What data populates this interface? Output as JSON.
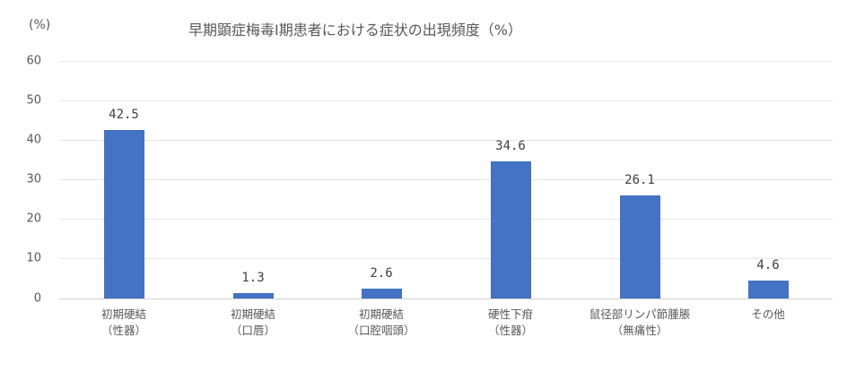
{
  "chart": {
    "unit_label": "(%)",
    "title": "早期顕症梅毒Ⅰ期患者における症状の出現頻度（%）",
    "y_ticks": [
      "0",
      "10",
      "20",
      "30",
      "40",
      "50",
      "60"
    ],
    "bars": [
      {
        "line1": "初期硬結",
        "line2": "（性器）",
        "value": 42.5,
        "label": "42.5"
      },
      {
        "line1": "初期硬結",
        "line2": "（口唇）",
        "value": 1.3,
        "label": "1.3"
      },
      {
        "line1": "初期硬結",
        "line2": "（口腔咽頭）",
        "value": 2.6,
        "label": "2.6"
      },
      {
        "line1": "硬性下疳",
        "line2": "（性器）",
        "value": 34.6,
        "label": "34.6"
      },
      {
        "line1": "鼠径部リンパ節腫脹",
        "line2": "（無痛性）",
        "value": 26.1,
        "label": "26.1"
      },
      {
        "line1": "その他",
        "line2": "",
        "value": 4.6,
        "label": "4.6"
      }
    ],
    "bar_color": "#4472c4"
  },
  "chart_data": {
    "type": "bar",
    "title": "早期顕症梅毒Ⅰ期患者における症状の出現頻度（%）",
    "categories": [
      "初期硬結（性器）",
      "初期硬結（口唇）",
      "初期硬結（口腔咽頭）",
      "硬性下疳（性器）",
      "鼠径部リンパ節腫脹（無痛性）",
      "その他"
    ],
    "values": [
      42.5,
      1.3,
      2.6,
      34.6,
      26.1,
      4.6
    ],
    "xlabel": "",
    "ylabel": "(%)",
    "ylim": [
      0,
      60
    ],
    "yticks": [
      0,
      10,
      20,
      30,
      40,
      50,
      60
    ],
    "grid": true,
    "legend": null,
    "data_labels": true,
    "color": "#4472c4"
  }
}
